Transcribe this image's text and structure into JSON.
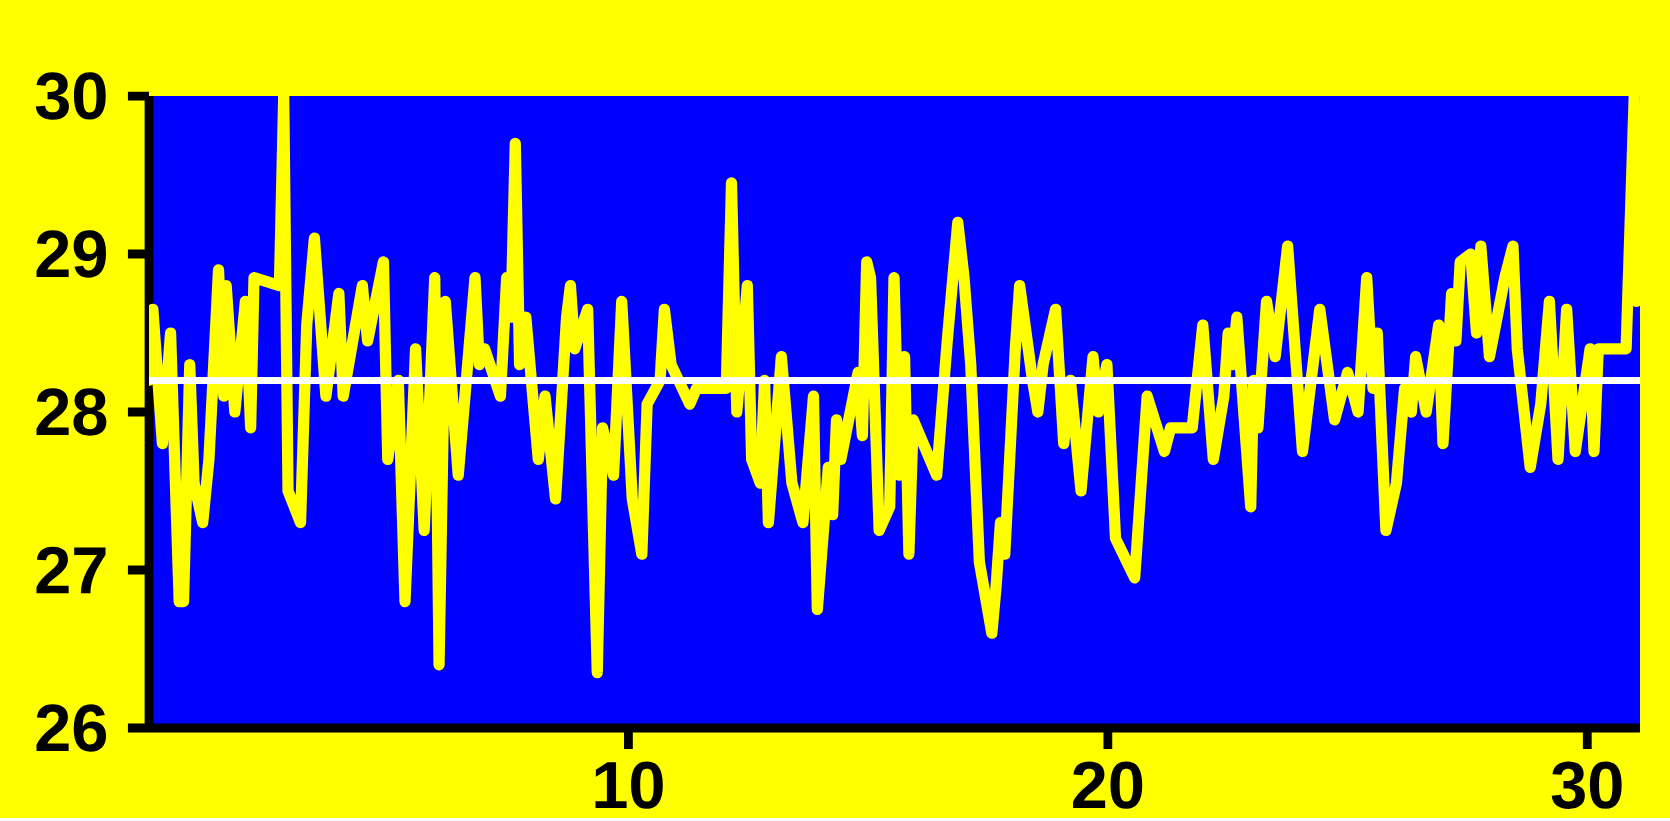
{
  "chart_data": {
    "type": "line",
    "x": [
      0.0,
      0.08,
      0.28,
      0.45,
      0.63,
      0.72,
      0.85,
      0.94,
      1.12,
      1.25,
      1.45,
      1.56,
      1.61,
      1.79,
      2.01,
      2.12,
      2.19,
      2.72,
      2.81,
      2.9,
      3.16,
      3.29,
      3.45,
      3.69,
      3.96,
      4.05,
      4.45,
      4.56,
      4.89,
      4.98,
      5.2,
      5.34,
      5.56,
      5.74,
      5.96,
      6.05,
      6.18,
      6.45,
      6.8,
      6.89,
      7.0,
      7.33,
      7.46,
      7.55,
      7.64,
      7.73,
      7.86,
      8.12,
      8.26,
      8.48,
      8.71,
      8.79,
      8.88,
      9.15,
      9.35,
      9.46,
      9.69,
      9.86,
      10.08,
      10.28,
      10.39,
      10.66,
      10.75,
      10.89,
      11.28,
      11.42,
      12.04,
      12.15,
      12.26,
      12.48,
      12.57,
      12.75,
      12.84,
      12.92,
      13.19,
      13.41,
      13.64,
      13.86,
      13.94,
      14.17,
      14.26,
      14.34,
      14.43,
      14.79,
      14.88,
      14.97,
      15.05,
      15.23,
      15.45,
      15.54,
      15.65,
      15.76,
      15.85,
      15.94,
      16.43,
      16.65,
      16.87,
      17.0,
      17.14,
      17.32,
      17.58,
      17.67,
      17.76,
      17.85,
      18.07,
      18.16,
      18.43,
      18.54,
      18.65,
      18.91,
      19.08,
      19.22,
      19.44,
      19.69,
      19.8,
      19.98,
      20.16,
      20.56,
      20.82,
      21.18,
      21.31,
      21.76,
      21.98,
      22.2,
      22.42,
      22.51,
      22.6,
      22.69,
      22.98,
      23.04,
      23.13,
      23.31,
      23.49,
      23.75,
      24.06,
      24.42,
      24.73,
      25.0,
      25.22,
      25.4,
      25.53,
      25.62,
      25.8,
      26.02,
      26.19,
      26.33,
      26.42,
      26.64,
      26.9,
      26.99,
      27.17,
      27.26,
      27.35,
      27.57,
      27.69,
      27.78,
      27.96,
      28.28,
      28.45,
      28.54,
      28.81,
      29.03,
      29.21,
      29.39,
      29.57,
      29.75,
      30.06,
      30.14,
      30.23,
      30.81,
      30.98,
      31.03
    ],
    "series": [
      {
        "color": "#ffff00",
        "values": [
          28.2,
          28.65,
          27.8,
          28.5,
          26.8,
          26.8,
          28.3,
          27.55,
          27.3,
          27.7,
          28.9,
          28.1,
          28.8,
          28.0,
          28.7,
          27.9,
          28.85,
          28.8,
          30.0,
          27.5,
          27.3,
          28.55,
          29.1,
          28.1,
          28.75,
          28.1,
          28.8,
          28.45,
          28.95,
          27.7,
          28.2,
          26.8,
          28.4,
          27.25,
          28.85,
          26.4,
          28.7,
          27.6,
          28.85,
          28.3,
          28.4,
          28.1,
          28.85,
          28.6,
          29.7,
          28.3,
          28.6,
          27.7,
          28.1,
          27.45,
          28.6,
          28.8,
          28.4,
          28.65,
          26.35,
          27.9,
          27.6,
          28.7,
          27.45,
          27.1,
          28.05,
          28.2,
          28.65,
          28.3,
          28.05,
          28.15,
          28.15,
          29.45,
          28.0,
          28.8,
          27.7,
          27.55,
          28.2,
          27.3,
          28.35,
          27.55,
          27.3,
          28.1,
          26.75,
          27.65,
          27.35,
          27.95,
          27.7,
          28.25,
          27.85,
          28.95,
          28.85,
          27.25,
          27.4,
          28.85,
          27.6,
          28.35,
          27.1,
          27.95,
          27.6,
          28.45,
          29.2,
          28.85,
          28.3,
          27.05,
          26.6,
          26.9,
          27.3,
          27.1,
          28.4,
          28.8,
          28.2,
          28.0,
          28.3,
          28.65,
          27.8,
          28.2,
          27.5,
          28.35,
          28.0,
          28.3,
          27.2,
          26.95,
          28.1,
          27.75,
          27.9,
          27.9,
          28.55,
          27.7,
          28.1,
          28.5,
          28.3,
          28.6,
          27.4,
          28.2,
          27.9,
          28.7,
          28.35,
          29.05,
          27.75,
          28.65,
          27.95,
          28.25,
          28.0,
          28.85,
          28.15,
          28.5,
          27.25,
          27.55,
          28.15,
          28.0,
          28.35,
          28.0,
          28.55,
          27.8,
          28.75,
          28.45,
          28.95,
          29.0,
          28.5,
          29.05,
          28.35,
          28.85,
          29.05,
          28.4,
          27.65,
          28.05,
          28.7,
          27.7,
          28.65,
          27.75,
          28.4,
          27.75,
          28.4,
          28.4,
          30.0,
          28.7
        ]
      }
    ],
    "xlim": [
      0,
      31.1
    ],
    "ylim": [
      26,
      30
    ],
    "xticks": [
      10,
      20,
      30
    ],
    "yticks": [
      26,
      27,
      28,
      29,
      30
    ],
    "ref_lines": [
      {
        "axis": "y",
        "value": 28.2,
        "color": "#ffffff"
      }
    ]
  }
}
